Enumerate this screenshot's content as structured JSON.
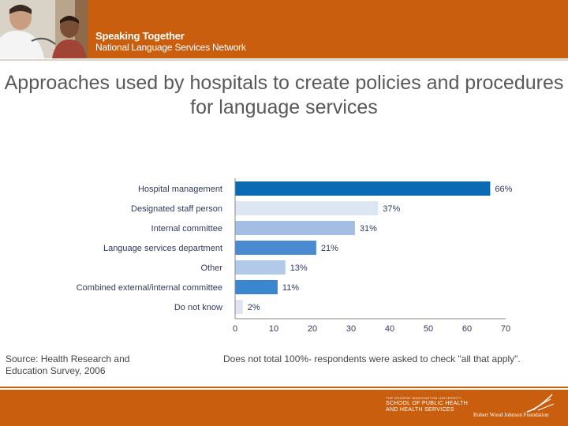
{
  "header": {
    "brand_line1": "Speaking Together",
    "brand_line2": "National Language Services Network"
  },
  "title": "Approaches used by hospitals to create policies and procedures for language services",
  "chart_data": {
    "type": "bar",
    "orientation": "horizontal",
    "title": "Approaches used by hospitals to create policies and procedures for language services",
    "categories": [
      "Hospital management",
      "Designated staff person",
      "Internal committee",
      "Language services department",
      "Other",
      "Combined external/internal committee",
      "Do not know"
    ],
    "values": [
      66,
      37,
      31,
      21,
      13,
      11,
      2
    ],
    "value_labels": [
      "66%",
      "37%",
      "31%",
      "21%",
      "13%",
      "11%",
      "2%"
    ],
    "bar_colors": [
      "#0a6ab4",
      "#dde6f3",
      "#a3bde3",
      "#4a8ad0",
      "#b3c9ea",
      "#3a86cf",
      "#dfe5f0"
    ],
    "xlim": [
      0,
      70
    ],
    "xticks": [
      "0",
      "10",
      "20",
      "30",
      "40",
      "50",
      "60",
      "70"
    ],
    "xlabel": "",
    "ylabel": ""
  },
  "footnotes": {
    "source": "Source: Health Research and Education Survey, 2006",
    "note": "Does not total 100%- respondents were asked to check \"all that apply\"."
  },
  "footer": {
    "gw_line0": "THE GEORGE WASHINGTON UNIVERSITY",
    "gw_line1": "SCHOOL OF PUBLIC HEALTH",
    "gw_line2": "AND HEALTH SERVICES",
    "rwj": "Robert Wood Johnson Foundation"
  },
  "colors": {
    "brand_orange": "#c95f0e",
    "title_gray": "#595959",
    "label_navy": "#2f3a5c"
  }
}
